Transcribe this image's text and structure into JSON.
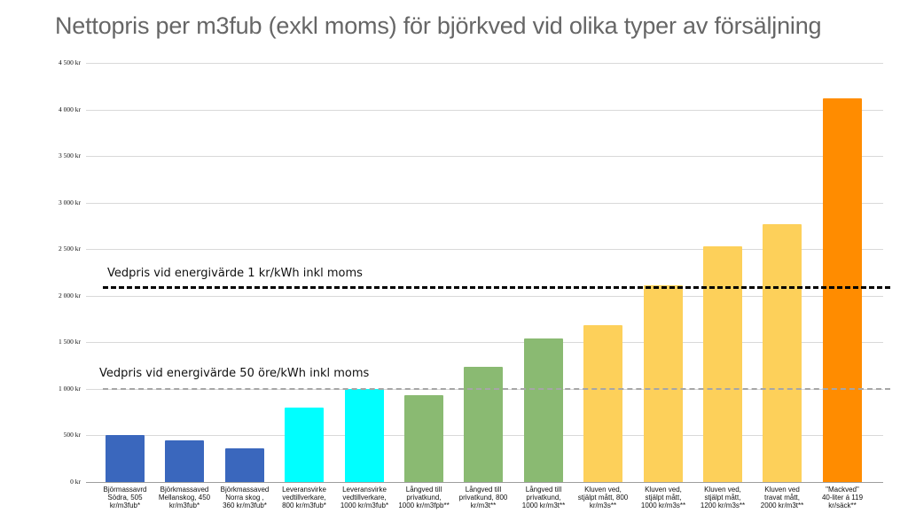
{
  "chart_data": {
    "type": "bar",
    "title": "Nettopris per m3fub (exkl moms) för björkved vid olika typer av försäljning",
    "xlabel": "",
    "ylabel": "",
    "ylim": [
      0,
      4500
    ],
    "yticks": [
      "0 kr",
      "500 kr",
      "1 000 kr",
      "1 500 kr",
      "2 000 kr",
      "2 500 kr",
      "3 000 kr",
      "3 500 kr",
      "4 000 kr",
      "4 500 kr"
    ],
    "grid": true,
    "legend": null,
    "categories": [
      "Björmassavrd Södra, 505 kr/m3fub*",
      "Björkmassaved Mellanskog, 450 kr/m3fub*",
      "Björkmassaved Norra skog , 360 kr/m3fub*",
      "Leveransvirke vedtillverkare, 800 kr/m3fub*",
      "Leveransvirke vedtillverkare, 1000 kr/m3fub*",
      "Långved till privatkund, 1000 kr/m3fpb**",
      "Långved till privatkund, 800 kr/m3t**",
      "Långved till privatkund, 1000 kr/m3t**",
      "Kluven ved, stjälpt mått, 800 kr/m3s**",
      "Kluven ved, stjälpt mått, 1000 kr/m3s**",
      "Kluven ved, stjälpt mått, 1200 kr/m3s**",
      "Kluven ved travat mått, 2000 kr/m3t**",
      "\"Mackved\" 40-liter á 119 kr/säck**"
    ],
    "values": [
      505,
      450,
      360,
      800,
      1000,
      930,
      1235,
      1540,
      1680,
      2110,
      2530,
      2770,
      4120
    ],
    "colors": [
      "#3a67bd",
      "#3a67bd",
      "#3a67bd",
      "#00ffff",
      "#00ffff",
      "#8aba72",
      "#8aba72",
      "#8aba72",
      "#fdd05a",
      "#fdd05a",
      "#fdd05a",
      "#fdd05a",
      "#ff8c00"
    ],
    "reference_lines": [
      {
        "label": "Vedpris vid energivärde 1 kr/kWh inkl moms",
        "value": 2090,
        "style": "dashed",
        "color": "#000000"
      },
      {
        "label": "Vedpris vid energivärde 50 öre/kWh inkl moms",
        "value": 1000,
        "style": "dashed",
        "color": "#a6a6a6"
      }
    ]
  },
  "labels": {
    "title": "Nettopris per m3fub (exkl moms) för björkved vid olika typer av försäljning",
    "ref_high": "Vedpris vid energivärde 1 kr/kWh inkl moms",
    "ref_low": "Vedpris vid energivärde 50 öre/kWh inkl moms",
    "x": [
      [
        "Björmassavrd",
        "Södra, 505",
        "kr/m3fub*"
      ],
      [
        "Björkmassaved",
        "Mellanskog, 450",
        "kr/m3fub*"
      ],
      [
        "Björkmassaved",
        "Norra skog ,",
        "360 kr/m3fub*"
      ],
      [
        "Leveransvirke",
        "vedtillverkare,",
        "800 kr/m3fub*"
      ],
      [
        "Leveransvirke",
        "vedtillverkare,",
        "1000 kr/m3fub*"
      ],
      [
        "Långved till",
        "privatkund,",
        "1000 kr/m3fpb**"
      ],
      [
        "Långved till",
        "privatkund, 800",
        "kr/m3t**"
      ],
      [
        "Långved till",
        "privatkund,",
        "1000 kr/m3t**"
      ],
      [
        "Kluven ved,",
        "stjälpt mått, 800",
        "kr/m3s**"
      ],
      [
        "Kluven ved,",
        "stjälpt mått,",
        "1000 kr/m3s**"
      ],
      [
        "Kluven ved,",
        "stjälpt mått,",
        "1200 kr/m3s**"
      ],
      [
        "Kluven ved",
        "travat mått,",
        "2000 kr/m3t**"
      ],
      [
        "\"Mackved\"",
        "40-liter á 119",
        "kr/säck**"
      ]
    ]
  }
}
